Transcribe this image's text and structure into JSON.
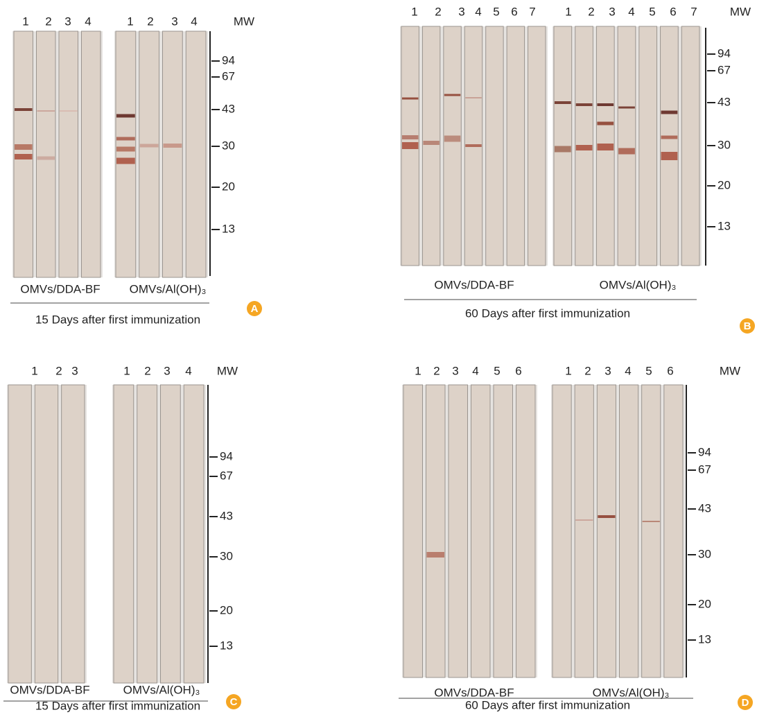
{
  "panels": [
    {
      "letter": "A",
      "lanes_left": [
        "1",
        "2",
        "3",
        "4"
      ],
      "lanes_right": [
        "1",
        "2",
        "3",
        "4"
      ],
      "mw_label": "MW",
      "mw_markers": [
        "94",
        "67",
        "43",
        "30",
        "20",
        "13"
      ],
      "group_left": "OMVs/DDA-BF",
      "group_right": "OMVs/Al(OH)₃",
      "caption": "15 Days after first immunization"
    },
    {
      "letter": "B",
      "lanes_left": [
        "1",
        "2",
        "3",
        "4",
        "5",
        "6",
        "7"
      ],
      "lanes_right": [
        "1",
        "2",
        "3",
        "4",
        "5",
        "6",
        "7"
      ],
      "mw_label": "MW",
      "mw_markers": [
        "94",
        "67",
        "43",
        "30",
        "20",
        "13"
      ],
      "group_left": "OMVs/DDA-BF",
      "group_right": "OMVs/Al(OH)₃",
      "caption": "60 Days after first immunization"
    },
    {
      "letter": "C",
      "lanes_left": [
        "1",
        "2",
        "3"
      ],
      "lanes_right": [
        "1",
        "2",
        "3",
        "4"
      ],
      "mw_label": "MW",
      "mw_markers": [
        "94",
        "67",
        "43",
        "30",
        "20",
        "13"
      ],
      "group_left": "OMVs/DDA-BF",
      "group_right": "OMVs/Al(OH)₃",
      "caption": "15 Days after first immunization"
    },
    {
      "letter": "D",
      "lanes_left": [
        "1",
        "2",
        "3",
        "4",
        "5",
        "6"
      ],
      "lanes_right": [
        "1",
        "2",
        "3",
        "4",
        "5",
        "6"
      ],
      "mw_label": "MW",
      "mw_markers": [
        "94",
        "67",
        "43",
        "30",
        "20",
        "13"
      ],
      "group_left": "OMVs/DDA-BF",
      "group_right": "OMVs/Al(OH)₃",
      "caption": "60 Days after first immunization"
    }
  ]
}
